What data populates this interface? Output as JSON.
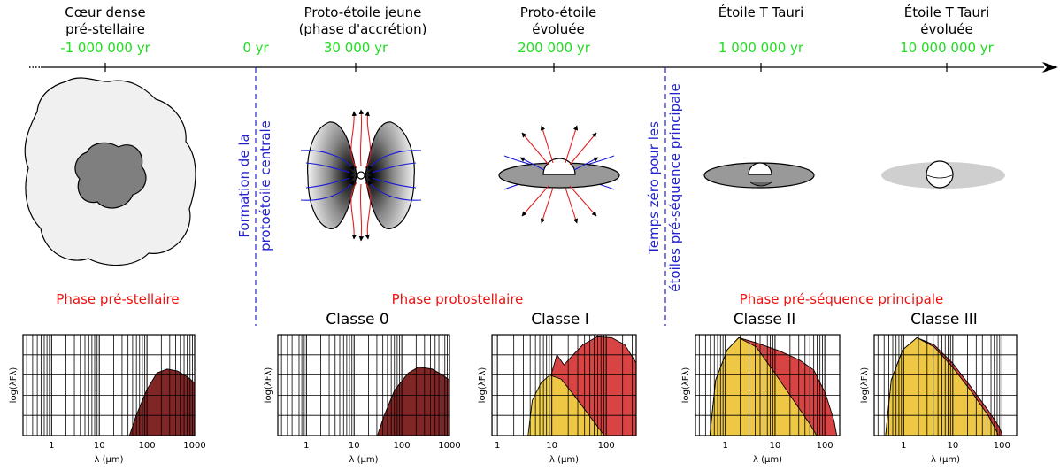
{
  "timeline": {
    "stages": [
      {
        "name": "Cœur dense",
        "name2": "pré-stellaire",
        "time": "-1 000 000 yr"
      },
      {
        "time": "0 yr"
      },
      {
        "name": "Proto-étoile jeune",
        "name2": "(phase d'accrétion)",
        "time": "30 000 yr"
      },
      {
        "name": "Proto-étoile",
        "name2": "évoluée",
        "time": "200 000 yr"
      },
      {
        "name": "Étoile T Tauri",
        "time": "1 000 000 yr"
      },
      {
        "name": "Étoile T Tauri",
        "name2": "évoluée",
        "time": "10 000 000 yr"
      }
    ]
  },
  "markers": {
    "formation": [
      "Formation de la",
      "protoétoile centrale"
    ],
    "zero": [
      "Temps zéro pour les",
      "étoiles pré-séquence principale"
    ]
  },
  "phases": {
    "prestellar": "Phase pré-stellaire",
    "protostellar": "Phase protostellaire",
    "premain": "Phase pré-séquence principale"
  },
  "colors": {
    "time": "#22dd22",
    "phase": "#ee1111",
    "marker": "#2222cc",
    "sed_dark": "#7a1a1a",
    "sed_red": "#d63a3a",
    "sed_yellow": "#efd046"
  },
  "chart_data": [
    {
      "type": "area",
      "title": "",
      "xlabel": "λ (μm)",
      "ylabel": "log(λFλ)",
      "x_ticks": [
        "1",
        "10",
        "100",
        "1000"
      ],
      "xscale": "log"
    },
    {
      "type": "area",
      "title": "Classe 0",
      "xlabel": "λ (μm)",
      "ylabel": "log(λFλ)",
      "x_ticks": [
        "1",
        "10",
        "100",
        "1000"
      ],
      "xscale": "log"
    },
    {
      "type": "area",
      "title": "Classe I",
      "xlabel": "λ (μm)",
      "ylabel": "log(λFλ)",
      "x_ticks": [
        "1",
        "10",
        "100"
      ],
      "xscale": "log"
    },
    {
      "type": "area",
      "title": "Classe II",
      "xlabel": "λ (μm)",
      "ylabel": "log(λFλ)",
      "x_ticks": [
        "1",
        "10",
        "100"
      ],
      "xscale": "log"
    },
    {
      "type": "area",
      "title": "Classe III",
      "xlabel": "λ (μm)",
      "ylabel": "log(λFλ)",
      "x_ticks": [
        "1",
        "10",
        "100"
      ],
      "xscale": "log"
    }
  ]
}
